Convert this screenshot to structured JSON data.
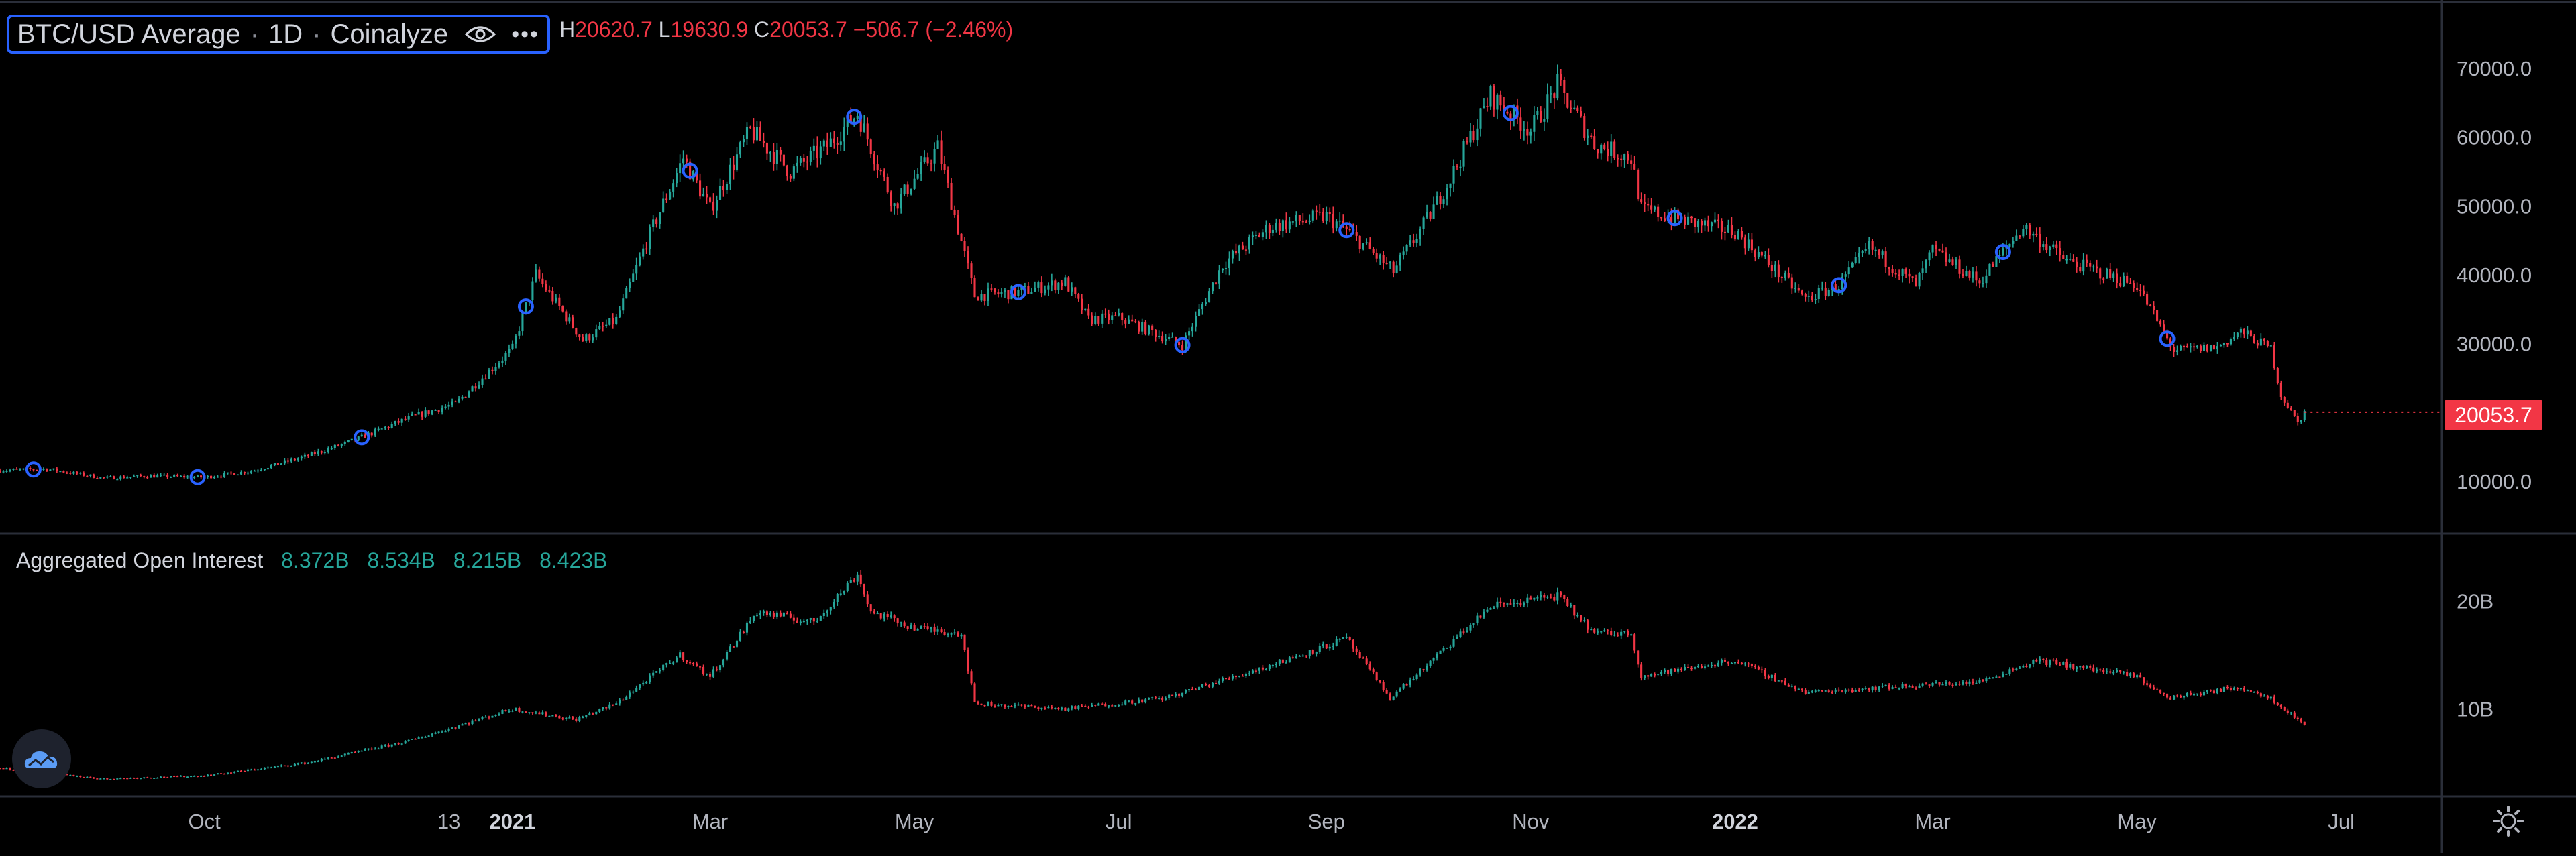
{
  "legend": {
    "symbol": "BTC/USD Average",
    "interval": "1D",
    "source": "Coinalyze",
    "more": "•••",
    "ohlc": {
      "h_label": "H",
      "h": "20620.7",
      "l_label": "L",
      "l": "19630.9",
      "c_label": "C",
      "c": "20053.7",
      "change": "−506.7 (−2.46%)"
    }
  },
  "last_price_badge": "20053.7",
  "oi_legend": {
    "title": "Aggregated Open Interest",
    "values": [
      "8.372B",
      "8.534B",
      "8.215B",
      "8.423B"
    ]
  },
  "colors": {
    "up": "#26a69a",
    "down": "#f23645",
    "marker": "#2962ff",
    "grid": "#2a2e39",
    "text": "#b2b5be"
  },
  "chart_data": [
    {
      "type": "candlestick",
      "title": "BTC/USD Average · 1D · Coinalyze",
      "x_tick_labels": [
        "Oct",
        "13",
        "2021",
        "Mar",
        "May",
        "Jul",
        "Sep",
        "Nov",
        "2022",
        "Mar",
        "May",
        "Jul"
      ],
      "x_tick_dates": [
        "2020-10-01",
        "2020-12-13",
        "2021-01-01",
        "2021-03-01",
        "2021-05-01",
        "2021-07-01",
        "2021-09-01",
        "2021-11-01",
        "2022-01-01",
        "2022-03-01",
        "2022-05-01",
        "2022-07-01"
      ],
      "x_range": [
        "2020-08-01",
        "2022-07-31"
      ],
      "y_tick_labels": [
        "10000.0",
        "20000.0",
        "30000.0",
        "40000.0",
        "50000.0",
        "60000.0",
        "70000.0"
      ],
      "y_ticks": [
        10000,
        20000,
        30000,
        40000,
        50000,
        60000,
        70000
      ],
      "ylim": [
        3000,
        77000
      ],
      "close_series": {
        "dates": [
          "2020-08-01",
          "2020-08-15",
          "2020-09-01",
          "2020-09-15",
          "2020-10-01",
          "2020-10-15",
          "2020-11-01",
          "2020-11-15",
          "2020-12-01",
          "2020-12-15",
          "2021-01-01",
          "2021-01-08",
          "2021-01-22",
          "2021-02-01",
          "2021-02-10",
          "2021-02-21",
          "2021-03-01",
          "2021-03-13",
          "2021-03-25",
          "2021-04-05",
          "2021-04-14",
          "2021-04-25",
          "2021-05-08",
          "2021-05-19",
          "2021-06-01",
          "2021-06-15",
          "2021-06-22",
          "2021-07-01",
          "2021-07-20",
          "2021-08-01",
          "2021-08-15",
          "2021-09-01",
          "2021-09-07",
          "2021-09-21",
          "2021-10-01",
          "2021-10-08",
          "2021-10-20",
          "2021-11-01",
          "2021-11-09",
          "2021-11-20",
          "2021-12-01",
          "2021-12-04",
          "2021-12-20",
          "2022-01-01",
          "2022-01-22",
          "2022-02-01",
          "2022-02-10",
          "2022-02-24",
          "2022-03-01",
          "2022-03-15",
          "2022-03-28",
          "2022-04-10",
          "2022-04-25",
          "2022-05-01",
          "2022-05-12",
          "2022-05-25",
          "2022-06-01",
          "2022-06-10",
          "2022-06-13",
          "2022-06-18",
          "2022-06-20"
        ],
        "values": [
          11600,
          11800,
          10500,
          10800,
          10600,
          11500,
          13700,
          16000,
          19200,
          21300,
          29300,
          40000,
          30500,
          33500,
          44800,
          57000,
          49500,
          61000,
          55000,
          58700,
          63500,
          50000,
          58500,
          37000,
          37500,
          39000,
          33500,
          33800,
          29800,
          41500,
          47000,
          48500,
          46500,
          40500,
          48000,
          54000,
          66000,
          61000,
          67500,
          59000,
          57000,
          49500,
          47500,
          46300,
          36500,
          38500,
          44000,
          38500,
          43500,
          39000,
          47000,
          42000,
          39500,
          38500,
          29000,
          29500,
          31700,
          29300,
          22500,
          18500,
          20050
        ]
      },
      "last_price": 20053.7
    },
    {
      "type": "bar",
      "title": "Aggregated Open Interest",
      "y_tick_labels": [
        "10B",
        "20B"
      ],
      "y_ticks": [
        10,
        20
      ],
      "ylim": [
        2,
        26
      ],
      "units": "B",
      "values_series": {
        "dates": [
          "2020-08-01",
          "2020-09-01",
          "2020-10-01",
          "2020-11-01",
          "2020-12-01",
          "2021-01-01",
          "2021-01-20",
          "2021-02-01",
          "2021-02-20",
          "2021-03-01",
          "2021-03-15",
          "2021-04-01",
          "2021-04-14",
          "2021-04-18",
          "2021-05-01",
          "2021-05-15",
          "2021-05-19",
          "2021-06-15",
          "2021-07-15",
          "2021-08-15",
          "2021-09-07",
          "2021-09-20",
          "2021-10-01",
          "2021-10-20",
          "2021-11-09",
          "2021-11-20",
          "2021-12-01",
          "2021-12-04",
          "2022-01-01",
          "2022-01-22",
          "2022-02-15",
          "2022-03-15",
          "2022-04-01",
          "2022-05-01",
          "2022-05-10",
          "2022-06-01",
          "2022-06-10",
          "2022-06-20"
        ],
        "values": [
          4.5,
          3.5,
          3.8,
          5.0,
          7.0,
          10.0,
          9.0,
          10.5,
          15.0,
          13.0,
          19.0,
          18.0,
          22.5,
          19.0,
          17.5,
          17.0,
          10.5,
          10.0,
          11.0,
          14.0,
          16.5,
          11.0,
          14.0,
          19.5,
          20.5,
          17.0,
          17.0,
          13.0,
          14.5,
          11.5,
          12.0,
          12.5,
          14.5,
          13.0,
          11.0,
          12.0,
          11.0,
          8.5
        ]
      }
    }
  ]
}
